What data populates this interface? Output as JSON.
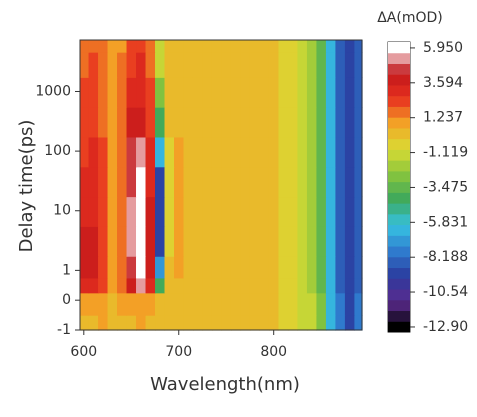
{
  "chart_data": {
    "type": "heatmap",
    "xlabel": "Wavelength(nm)",
    "ylabel": "Delay time(ps)",
    "colorbar_label": "ΔA(mOD)",
    "xlim": [
      596,
      893
    ],
    "xticks": [
      600,
      700,
      800
    ],
    "ylim": [
      -1,
      7300
    ],
    "yscale": "symlog",
    "linthresh": 1,
    "yticks": [
      -1,
      0,
      1,
      10,
      100,
      1000
    ],
    "clim": [
      -13.24,
      6.35
    ],
    "cticks": [
      {
        "value": 5.95,
        "label": "5.950"
      },
      3.594,
      1.237,
      -1.119,
      -3.475,
      -5.831,
      -8.188,
      {
        "value": -10.54,
        "label": "-10.54"
      },
      {
        "value": -12.9,
        "label": "-12.90"
      }
    ],
    "colormap": [
      "#000000",
      "#5b2a8e",
      "#2b3c9e",
      "#2f7ccf",
      "#37c2e2",
      "#3ca85c",
      "#86c43e",
      "#d9dc33",
      "#f3a426",
      "#e8321f",
      "#c2161b",
      "#ffffff"
    ],
    "x": [
      600,
      610,
      620,
      630,
      640,
      650,
      660,
      670,
      680,
      690,
      700,
      710,
      720,
      730,
      740,
      750,
      760,
      770,
      780,
      790,
      800,
      810,
      820,
      830,
      840,
      850,
      860,
      870,
      880,
      890
    ],
    "y": [
      -1,
      0,
      0.5,
      1,
      3,
      10,
      30,
      100,
      300,
      1000,
      3000,
      7000
    ],
    "z": [
      [
        0.5,
        0.5,
        0.6,
        0.5,
        0.5,
        0.5,
        0.6,
        0.5,
        0.4,
        0.5,
        0.5,
        0.4,
        0.4,
        0.4,
        0.3,
        0.3,
        0.3,
        0.2,
        0.2,
        0.1,
        0,
        -0.3,
        -0.6,
        -1,
        -1.5,
        -3,
        -6,
        -8,
        -9,
        -8
      ],
      [
        0.8,
        0.8,
        0.7,
        0.5,
        0.6,
        1.0,
        1.2,
        0.8,
        0,
        0.5,
        0.5,
        0.4,
        0.4,
        0.4,
        0.3,
        0.3,
        0.3,
        0.2,
        0.2,
        0.1,
        0,
        -0.3,
        -0.6,
        -1,
        -1.5,
        -3,
        -6,
        -8,
        -9,
        -8
      ],
      [
        3,
        3.2,
        2,
        0.8,
        1.5,
        4,
        5,
        3,
        -4,
        0.2,
        0.5,
        0.5,
        0.5,
        0.4,
        0.4,
        0.3,
        0.3,
        0.2,
        0.2,
        0.1,
        0,
        -0.4,
        -0.8,
        -1.2,
        -1.8,
        -3.5,
        -6,
        -8.5,
        -9.5,
        -8.5
      ],
      [
        3.5,
        3.8,
        2.3,
        0.8,
        1.8,
        4.8,
        5.8,
        3.5,
        -7,
        0,
        0.6,
        0.5,
        0.5,
        0.4,
        0.4,
        0.3,
        0.3,
        0.2,
        0.2,
        0.1,
        0,
        -0.4,
        -0.8,
        -1.2,
        -1.8,
        -3.5,
        -6,
        -8.5,
        -9.5,
        -8.5
      ],
      [
        3.5,
        3.6,
        2.2,
        0.8,
        1.8,
        5,
        6,
        3.5,
        -9,
        -0.5,
        0.6,
        0.5,
        0.5,
        0.4,
        0.4,
        0.3,
        0.3,
        0.2,
        0.2,
        0.1,
        0,
        -0.4,
        -0.8,
        -1.2,
        -1.8,
        -3.5,
        -6,
        -8.5,
        -9.5,
        -8.5
      ],
      [
        3.2,
        3.4,
        2.2,
        0.8,
        1.8,
        5,
        6,
        3.5,
        -9.5,
        -0.8,
        0.6,
        0.5,
        0.5,
        0.4,
        0.4,
        0.3,
        0.3,
        0.2,
        0.2,
        0.1,
        0,
        -0.4,
        -0.8,
        -1.2,
        -1.8,
        -3.5,
        -6,
        -8.5,
        -9.5,
        -8.5
      ],
      [
        3,
        3.2,
        2.1,
        0.8,
        1.8,
        4.8,
        5.8,
        3.2,
        -9,
        -0.5,
        0.6,
        0.5,
        0.5,
        0.4,
        0.4,
        0.3,
        0.3,
        0.2,
        0.2,
        0.1,
        0,
        -0.4,
        -0.8,
        -1.2,
        -1.8,
        -3.5,
        -6,
        -8.5,
        -9.5,
        -8.5
      ],
      [
        2.6,
        2.8,
        2,
        0.8,
        1.7,
        4.2,
        5,
        2.8,
        -6,
        -0.2,
        0.6,
        0.5,
        0.5,
        0.4,
        0.4,
        0.3,
        0.3,
        0.2,
        0.2,
        0.1,
        0,
        -0.4,
        -0.8,
        -1.2,
        -1.8,
        -3.5,
        -6,
        -8.5,
        -9.5,
        -8.5
      ],
      [
        2.2,
        2.4,
        1.8,
        0.8,
        1.5,
        3.5,
        4,
        2.5,
        -4,
        0,
        0.5,
        0.5,
        0.5,
        0.4,
        0.4,
        0.3,
        0.3,
        0.2,
        0.2,
        0.1,
        0,
        -0.4,
        -0.8,
        -1.2,
        -1.8,
        -3.5,
        -6,
        -8.5,
        -9.5,
        -8.5
      ],
      [
        2,
        2.2,
        1.7,
        0.8,
        1.4,
        3,
        3.3,
        2,
        -2.5,
        0.2,
        0.5,
        0.5,
        0.5,
        0.4,
        0.4,
        0.3,
        0.3,
        0.2,
        0.2,
        0.1,
        0,
        -0.4,
        -0.8,
        -1.2,
        -1.8,
        -3.5,
        -6,
        -8.5,
        -9.5,
        -8.5
      ],
      [
        1.8,
        2,
        1.6,
        0.8,
        1.3,
        2.6,
        2.8,
        1.8,
        -1.5,
        0.2,
        0.5,
        0.5,
        0.5,
        0.4,
        0.4,
        0.3,
        0.3,
        0.2,
        0.2,
        0.1,
        0,
        -0.4,
        -0.8,
        -1.2,
        -1.8,
        -3.5,
        -6,
        -8.5,
        -9.5,
        -8.5
      ],
      [
        1.6,
        1.8,
        1.5,
        0.8,
        1.2,
        2.4,
        2.5,
        1.6,
        -1,
        0.3,
        0.5,
        0.5,
        0.5,
        0.4,
        0.4,
        0.3,
        0.3,
        0.2,
        0.2,
        0.1,
        0,
        -0.4,
        -0.8,
        -1.2,
        -1.8,
        -3.5,
        -6,
        -8.5,
        -9.5,
        -8.5
      ]
    ]
  }
}
